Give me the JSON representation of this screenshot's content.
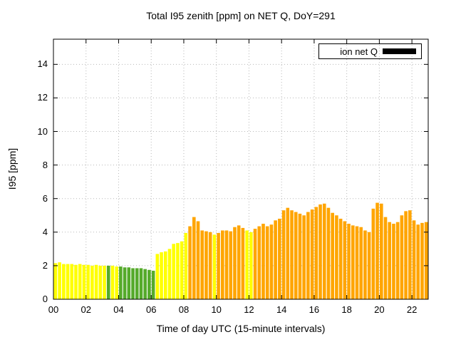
{
  "title": "Total I95 zenith [ppm] on NET Q, DoY=291",
  "xlabel": "Time of day UTC (15-minute intervals)",
  "ylabel": "I95 [ppm]",
  "legend": {
    "label": "ion net Q",
    "sample_color": "#000000"
  },
  "axes": {
    "x_tick_labels": [
      "00",
      "02",
      "04",
      "06",
      "08",
      "10",
      "12",
      "14",
      "16",
      "18",
      "20",
      "22"
    ],
    "x_tick_hours": [
      0,
      2,
      4,
      6,
      8,
      10,
      12,
      14,
      16,
      18,
      20,
      22
    ],
    "y_tick_labels": [
      "0",
      "2",
      "4",
      "6",
      "8",
      "10",
      "12",
      "14"
    ],
    "y_tick_values": [
      0,
      2,
      4,
      6,
      8,
      10,
      12,
      14
    ],
    "x_range_hours": [
      0,
      23
    ],
    "y_range": [
      0,
      15.5
    ],
    "grid": "dotted"
  },
  "chart_data": {
    "type": "bar",
    "title": "Total I95 zenith [ppm] on NET Q, DoY=291",
    "xlabel": "Time of day UTC (15-minute intervals)",
    "ylabel": "I95 [ppm]",
    "legend_entries": [
      "ion net Q"
    ],
    "legend_position": "top-right-inside-boxed",
    "x_start_hour": 0,
    "x_step_hours": 0.25,
    "xlim_hours": [
      0,
      23
    ],
    "ylim": [
      0,
      15.5
    ],
    "palette": {
      "y": "#ffff00",
      "g": "#55aa2b",
      "o": "#ffa500"
    },
    "values": [
      2.15,
      2.2,
      2.1,
      2.1,
      2.1,
      2.05,
      2.1,
      2.05,
      2.05,
      2.0,
      2.05,
      2.0,
      2.0,
      2.0,
      2.0,
      1.95,
      1.95,
      1.9,
      1.9,
      1.85,
      1.85,
      1.85,
      1.8,
      1.75,
      1.7,
      2.7,
      2.8,
      2.85,
      3.0,
      3.3,
      3.35,
      3.45,
      3.95,
      4.35,
      4.9,
      4.65,
      4.1,
      4.05,
      4.0,
      3.85,
      3.95,
      4.1,
      4.1,
      4.05,
      4.3,
      4.4,
      4.25,
      4.1,
      4.0,
      4.2,
      4.35,
      4.5,
      4.35,
      4.45,
      4.7,
      4.8,
      5.3,
      5.45,
      5.3,
      5.2,
      5.1,
      5.0,
      5.2,
      5.35,
      5.5,
      5.65,
      5.7,
      5.45,
      5.15,
      5.0,
      4.8,
      4.65,
      4.5,
      4.4,
      4.35,
      4.3,
      4.1,
      4.0,
      5.4,
      5.75,
      5.7,
      4.9,
      4.6,
      4.5,
      4.6,
      5.0,
      5.25,
      5.3,
      4.7,
      4.45,
      4.55,
      4.6
    ],
    "bar_colors": [
      "y",
      "y",
      "y",
      "y",
      "y",
      "y",
      "y",
      "y",
      "y",
      "y",
      "y",
      "y",
      "y",
      "g",
      "y",
      "y",
      "g",
      "g",
      "g",
      "g",
      "g",
      "g",
      "g",
      "g",
      "g",
      "y",
      "y",
      "y",
      "y",
      "y",
      "y",
      "y",
      "y",
      "o",
      "o",
      "o",
      "o",
      "o",
      "o",
      "y",
      "o",
      "o",
      "o",
      "o",
      "o",
      "o",
      "o",
      "y",
      "y",
      "o",
      "o",
      "o",
      "o",
      "o",
      "o",
      "o",
      "o",
      "o",
      "o",
      "o",
      "o",
      "o",
      "o",
      "o",
      "o",
      "o",
      "o",
      "o",
      "o",
      "o",
      "o",
      "o",
      "o",
      "o",
      "o",
      "o",
      "o",
      "o",
      "o",
      "o",
      "o",
      "o",
      "o",
      "o",
      "o",
      "o",
      "o",
      "o",
      "o",
      "o",
      "o",
      "o"
    ]
  }
}
